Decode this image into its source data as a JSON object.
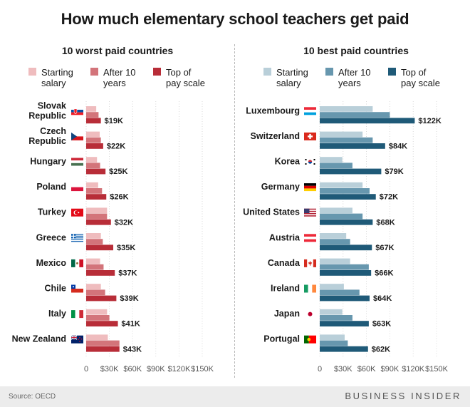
{
  "title": "How much elementary school teachers get paid",
  "source": "Source: OECD",
  "brand": "BUSINESS INSIDER",
  "chart_data": [
    {
      "type": "bar",
      "orientation": "horizontal",
      "title": "10 worst paid countries",
      "xlim": [
        0,
        150000
      ],
      "x_ticks": [
        "0",
        "$30K",
        "$60K",
        "$90K",
        "$120K",
        "$150K"
      ],
      "legend": [
        {
          "label": "Starting salary",
          "color": "#efbcbe"
        },
        {
          "label": "After 10 years",
          "color": "#d3747a"
        },
        {
          "label": "Top of pay scale",
          "color": "#b82d38"
        }
      ],
      "categories": [
        "Slovak Republic",
        "Czech Republic",
        "Hungary",
        "Poland",
        "Turkey",
        "Greece",
        "Mexico",
        "Chile",
        "Italy",
        "New Zealand"
      ],
      "flags": [
        "slovakia",
        "czech",
        "hungary",
        "poland",
        "turkey",
        "greece",
        "mexico",
        "chile",
        "italy",
        "newzealand"
      ],
      "series": [
        {
          "name": "Starting salary",
          "values": [
            13000,
            17500,
            14000,
            15500,
            27000,
            19000,
            18000,
            19000,
            27000,
            28000
          ]
        },
        {
          "name": "After 10 years",
          "values": [
            16000,
            19000,
            18000,
            20500,
            27000,
            21500,
            22500,
            24500,
            30000,
            43000
          ]
        },
        {
          "name": "Top of pay scale",
          "values": [
            19000,
            22000,
            25000,
            26000,
            32000,
            35000,
            37000,
            39000,
            41000,
            43000
          ]
        }
      ],
      "value_labels": [
        "$19K",
        "$22K",
        "$25K",
        "$26K",
        "$32K",
        "$35K",
        "$37K",
        "$39K",
        "$41K",
        "$43K"
      ]
    },
    {
      "type": "bar",
      "orientation": "horizontal",
      "title": "10 best paid countries",
      "xlim": [
        0,
        150000
      ],
      "x_ticks": [
        "0",
        "$30K",
        "$60K",
        "$90K",
        "$120K",
        "$150K"
      ],
      "legend": [
        {
          "label": "Starting salary",
          "color": "#b9cfd9"
        },
        {
          "label": "After 10 years",
          "color": "#6797ae"
        },
        {
          "label": "Top of pay scale",
          "color": "#1f5a78"
        }
      ],
      "categories": [
        "Luxembourg",
        "Switzerland",
        "Korea",
        "Germany",
        "United States",
        "Austria",
        "Canada",
        "Ireland",
        "Japan",
        "Portugal"
      ],
      "flags": [
        "luxembourg",
        "switzerland",
        "korea",
        "germany",
        "usa",
        "austria",
        "canada",
        "ireland",
        "japan",
        "portugal"
      ],
      "series": [
        {
          "name": "Starting salary",
          "values": [
            68000,
            55000,
            29000,
            55000,
            42000,
            34000,
            39000,
            31000,
            29000,
            32000
          ]
        },
        {
          "name": "After 10 years",
          "values": [
            90000,
            68000,
            42000,
            64000,
            55000,
            39000,
            63000,
            51000,
            42000,
            36000
          ]
        },
        {
          "name": "Top of pay scale",
          "values": [
            122000,
            84000,
            79000,
            72000,
            68000,
            67000,
            66000,
            64000,
            63000,
            62000
          ]
        }
      ],
      "value_labels": [
        "$122K",
        "$84K",
        "$79K",
        "$72K",
        "$68K",
        "$67K",
        "$66K",
        "$64K",
        "$63K",
        "$62K"
      ]
    }
  ]
}
